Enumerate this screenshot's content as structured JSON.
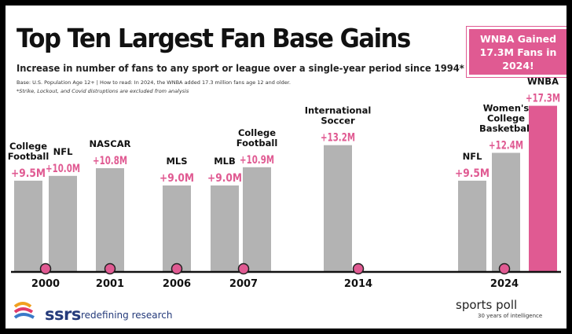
{
  "header": {
    "title": "Top Ten Largest Fan Base Gains",
    "subtitle": "Increase in number of fans to any sport or league over a single-year period since 1994*",
    "note_base": "Base: U.S. Population Age 12+ | How to read: In 2024, the WNBA added 17.3 million fans age 12 and older.",
    "note_excluded": "*Strike, Lockout, and Covid distruptions are excluded from analysis",
    "callout": "WNBA Gained\n17.3M Fans in 2024!"
  },
  "footer": {
    "brand_word": "ssrs",
    "brand_tagline": "redefining research",
    "partner_name": "sports poll",
    "partner_tagline": "30 years of intelligence"
  },
  "colors": {
    "bar": "#b3b3b3",
    "highlight_bar": "#e05a92",
    "value_label": "#e05a92",
    "axis": "#111111",
    "brand": "#243a7a"
  },
  "chart_data": {
    "type": "bar",
    "value_unit": "M",
    "x_categories": [
      "2000",
      "2001",
      "2006",
      "2007",
      "2014",
      "2024"
    ],
    "bars": [
      {
        "year": "2000",
        "label": [
          "College",
          "Football"
        ],
        "value": 9.5,
        "value_label": "+9.5M"
      },
      {
        "year": "2000",
        "label": [
          "NFL"
        ],
        "value": 10.0,
        "value_label": "+10.0M"
      },
      {
        "year": "2001",
        "label": [
          "NASCAR"
        ],
        "value": 10.8,
        "value_label": "+10.8M"
      },
      {
        "year": "2006",
        "label": [
          "MLS"
        ],
        "value": 9.0,
        "value_label": "+9.0M"
      },
      {
        "year": "2007",
        "label": [
          "MLB"
        ],
        "value": 9.0,
        "value_label": "+9.0M"
      },
      {
        "year": "2007",
        "label": [
          "College",
          "Football"
        ],
        "value": 10.9,
        "value_label": "+10.9M"
      },
      {
        "year": "2014",
        "label": [
          "International",
          "Soccer"
        ],
        "value": 13.2,
        "value_label": "+13.2M"
      },
      {
        "year": "2024",
        "label": [
          "NFL"
        ],
        "value": 9.5,
        "value_label": "+9.5M"
      },
      {
        "year": "2024",
        "label": [
          "Women's",
          "College",
          "Basketball"
        ],
        "value": 12.4,
        "value_label": "+12.4M"
      },
      {
        "year": "2024",
        "label": [
          "WNBA"
        ],
        "value": 17.3,
        "value_label": "+17.3M",
        "highlight": true
      }
    ]
  }
}
